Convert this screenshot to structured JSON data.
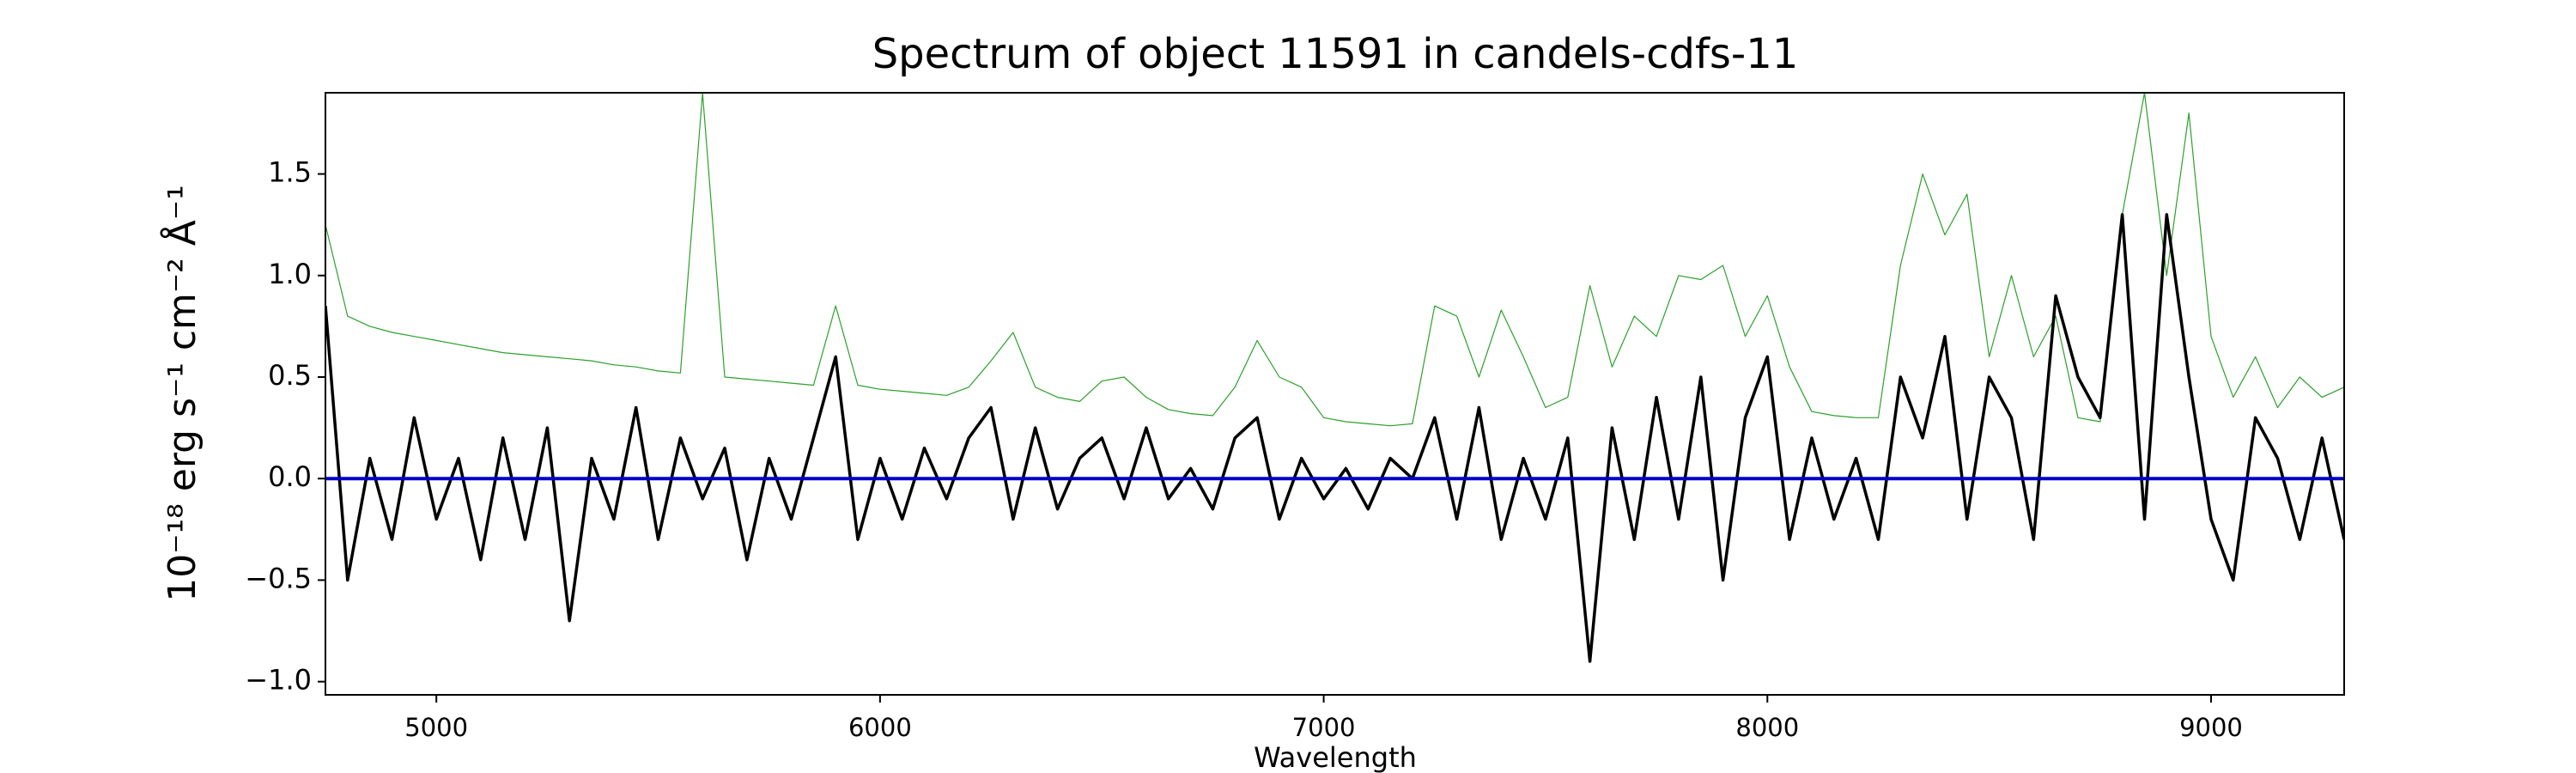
{
  "chart_data": {
    "type": "line",
    "title": "Spectrum of object 11591 in candels-cdfs-11",
    "xlabel": "Wavelength",
    "ylabel": "10⁻¹⁸ erg s⁻¹ cm⁻² Å⁻¹",
    "x": [
      4750,
      4800,
      4850,
      4900,
      4950,
      5000,
      5050,
      5100,
      5150,
      5200,
      5250,
      5300,
      5350,
      5400,
      5450,
      5500,
      5550,
      5600,
      5650,
      5700,
      5750,
      5800,
      5850,
      5900,
      5950,
      6000,
      6050,
      6100,
      6150,
      6200,
      6250,
      6300,
      6350,
      6400,
      6450,
      6500,
      6550,
      6600,
      6650,
      6700,
      6750,
      6800,
      6850,
      6900,
      6950,
      7000,
      7050,
      7100,
      7150,
      7200,
      7250,
      7300,
      7350,
      7400,
      7450,
      7500,
      7550,
      7600,
      7650,
      7700,
      7750,
      7800,
      7850,
      7900,
      7950,
      8000,
      8050,
      8100,
      8150,
      8200,
      8250,
      8300,
      8350,
      8400,
      8450,
      8500,
      8550,
      8600,
      8650,
      8700,
      8750,
      8800,
      8850,
      8900,
      8950,
      9000,
      9050,
      9100,
      9150,
      9200,
      9250,
      9300
    ],
    "series": [
      {
        "color": "#2ca02c",
        "width": 1.2,
        "values": [
          1.25,
          0.8,
          0.75,
          0.72,
          0.7,
          0.68,
          0.66,
          0.64,
          0.62,
          0.61,
          0.6,
          0.59,
          0.58,
          0.56,
          0.55,
          0.53,
          0.52,
          1.9,
          0.5,
          0.49,
          0.48,
          0.47,
          0.46,
          0.85,
          0.46,
          0.44,
          0.43,
          0.42,
          0.41,
          0.45,
          0.58,
          0.72,
          0.45,
          0.4,
          0.38,
          0.48,
          0.5,
          0.4,
          0.34,
          0.32,
          0.31,
          0.45,
          0.68,
          0.5,
          0.45,
          0.3,
          0.28,
          0.27,
          0.26,
          0.27,
          0.85,
          0.8,
          0.5,
          0.83,
          0.6,
          0.35,
          0.4,
          0.95,
          0.55,
          0.8,
          0.7,
          1.0,
          0.98,
          1.05,
          0.7,
          0.9,
          0.55,
          0.33,
          0.31,
          0.3,
          0.3,
          1.05,
          1.5,
          1.2,
          1.4,
          0.6,
          1.0,
          0.6,
          0.8,
          0.3,
          0.28,
          1.3,
          1.9,
          1.0,
          1.8,
          0.7,
          0.4,
          0.6,
          0.35,
          0.5,
          0.4,
          0.45
        ]
      },
      {
        "color": "#000000",
        "width": 3.5,
        "values": [
          0.85,
          -0.5,
          0.1,
          -0.3,
          0.3,
          -0.2,
          0.1,
          -0.4,
          0.2,
          -0.3,
          0.25,
          -0.7,
          0.1,
          -0.2,
          0.35,
          -0.3,
          0.2,
          -0.1,
          0.15,
          -0.4,
          0.1,
          -0.2,
          0.2,
          0.6,
          -0.3,
          0.1,
          -0.2,
          0.15,
          -0.1,
          0.2,
          0.35,
          -0.2,
          0.25,
          -0.15,
          0.1,
          0.2,
          -0.1,
          0.25,
          -0.1,
          0.05,
          -0.15,
          0.2,
          0.3,
          -0.2,
          0.1,
          -0.1,
          0.05,
          -0.15,
          0.1,
          0.0,
          0.3,
          -0.2,
          0.35,
          -0.3,
          0.1,
          -0.2,
          0.2,
          -0.9,
          0.25,
          -0.3,
          0.4,
          -0.2,
          0.5,
          -0.5,
          0.3,
          0.6,
          -0.3,
          0.2,
          -0.2,
          0.1,
          -0.3,
          0.5,
          0.2,
          0.7,
          -0.2,
          0.5,
          0.3,
          -0.3,
          0.9,
          0.5,
          0.3,
          1.3,
          -0.2,
          1.3,
          0.5,
          -0.2,
          -0.5,
          0.3,
          0.1,
          -0.3,
          0.2,
          -0.3
        ]
      },
      {
        "color": "#0000cc",
        "width": 4,
        "x": [
          4750,
          9300
        ],
        "values": [
          0,
          0
        ]
      }
    ],
    "xlim": [
      4750,
      9300
    ],
    "ylim": [
      -1.065,
      1.9
    ],
    "xticks": [
      5000,
      6000,
      7000,
      8000,
      9000
    ],
    "yticks": [
      {
        "value": -1.0,
        "label": "−1.0"
      },
      {
        "value": -0.5,
        "label": "−0.5"
      },
      {
        "value": 0.0,
        "label": "0.0"
      },
      {
        "value": 0.5,
        "label": "0.5"
      },
      {
        "value": 1.0,
        "label": "1.0"
      },
      {
        "value": 1.5,
        "label": "1.5"
      }
    ],
    "grid": false
  }
}
